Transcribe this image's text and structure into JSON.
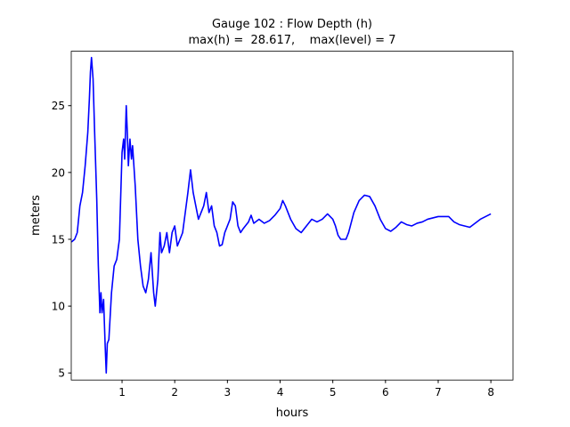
{
  "chart_data": {
    "type": "line",
    "title": "Gauge 102 : Flow Depth (h)",
    "subtitle": "max(h) =  28.617,    max(level) = 7",
    "xlabel": "hours",
    "ylabel": "meters",
    "xlim": [
      0.036,
      8.42
    ],
    "ylim": [
      4.47,
      29.07
    ],
    "xticks": [
      1,
      2,
      3,
      4,
      5,
      6,
      7,
      8
    ],
    "yticks": [
      5,
      10,
      15,
      20,
      25
    ],
    "grid": false,
    "x": [
      0.04,
      0.1,
      0.15,
      0.2,
      0.25,
      0.3,
      0.35,
      0.38,
      0.4,
      0.42,
      0.45,
      0.48,
      0.52,
      0.55,
      0.58,
      0.6,
      0.62,
      0.65,
      0.68,
      0.7,
      0.72,
      0.75,
      0.8,
      0.85,
      0.9,
      0.95,
      1.0,
      1.03,
      1.05,
      1.08,
      1.1,
      1.12,
      1.15,
      1.18,
      1.2,
      1.25,
      1.3,
      1.35,
      1.4,
      1.45,
      1.5,
      1.55,
      1.6,
      1.63,
      1.68,
      1.72,
      1.75,
      1.8,
      1.85,
      1.9,
      1.95,
      2.0,
      2.05,
      2.1,
      2.15,
      2.2,
      2.25,
      2.3,
      2.35,
      2.4,
      2.45,
      2.5,
      2.55,
      2.6,
      2.65,
      2.7,
      2.75,
      2.8,
      2.85,
      2.9,
      2.95,
      3.0,
      3.05,
      3.1,
      3.15,
      3.2,
      3.25,
      3.3,
      3.4,
      3.45,
      3.5,
      3.6,
      3.7,
      3.8,
      3.9,
      4.0,
      4.05,
      4.1,
      4.2,
      4.3,
      4.4,
      4.5,
      4.6,
      4.7,
      4.8,
      4.9,
      5.0,
      5.05,
      5.1,
      5.15,
      5.25,
      5.3,
      5.4,
      5.5,
      5.6,
      5.7,
      5.8,
      5.9,
      6.0,
      6.1,
      6.2,
      6.3,
      6.4,
      6.5,
      6.6,
      6.7,
      6.8,
      6.9,
      7.0,
      7.1,
      7.2,
      7.3,
      7.4,
      7.5,
      7.6,
      7.7,
      7.8,
      7.9,
      8.0
    ],
    "series": [
      {
        "name": "h",
        "color": "#0000ff",
        "values": [
          14.8,
          15.0,
          15.5,
          17.5,
          18.5,
          20.5,
          23,
          25.5,
          27.5,
          28.6,
          27,
          23,
          18,
          13,
          9.5,
          11,
          9.5,
          10.5,
          7,
          5.0,
          7.2,
          7.5,
          11,
          13,
          13.5,
          15,
          21.5,
          22.5,
          21,
          25,
          23,
          20.5,
          22.5,
          21,
          22,
          19,
          15,
          13,
          11.5,
          11,
          12,
          14,
          11,
          10,
          12,
          15.5,
          14,
          14.5,
          15.5,
          14,
          15.5,
          16,
          14.5,
          15,
          15.5,
          17,
          18.5,
          20.2,
          18.5,
          17.5,
          16.5,
          17,
          17.5,
          18.5,
          17,
          17.5,
          16,
          15.5,
          14.5,
          14.6,
          15.5,
          16,
          16.5,
          17.8,
          17.5,
          16,
          15.5,
          15.8,
          16.3,
          16.8,
          16.2,
          16.5,
          16.2,
          16.4,
          16.8,
          17.3,
          17.9,
          17.5,
          16.5,
          15.8,
          15.5,
          16,
          16.5,
          16.3,
          16.5,
          16.9,
          16.5,
          16,
          15.3,
          15.0,
          15.0,
          15.5,
          17,
          17.9,
          18.3,
          18.2,
          17.5,
          16.5,
          15.8,
          15.6,
          15.9,
          16.3,
          16.1,
          16.0,
          16.2,
          16.3,
          16.5,
          16.6,
          16.7,
          16.7,
          16.7,
          16.3,
          16.1,
          16.0,
          15.9,
          16.2,
          16.5,
          16.7,
          16.9
        ]
      }
    ]
  }
}
